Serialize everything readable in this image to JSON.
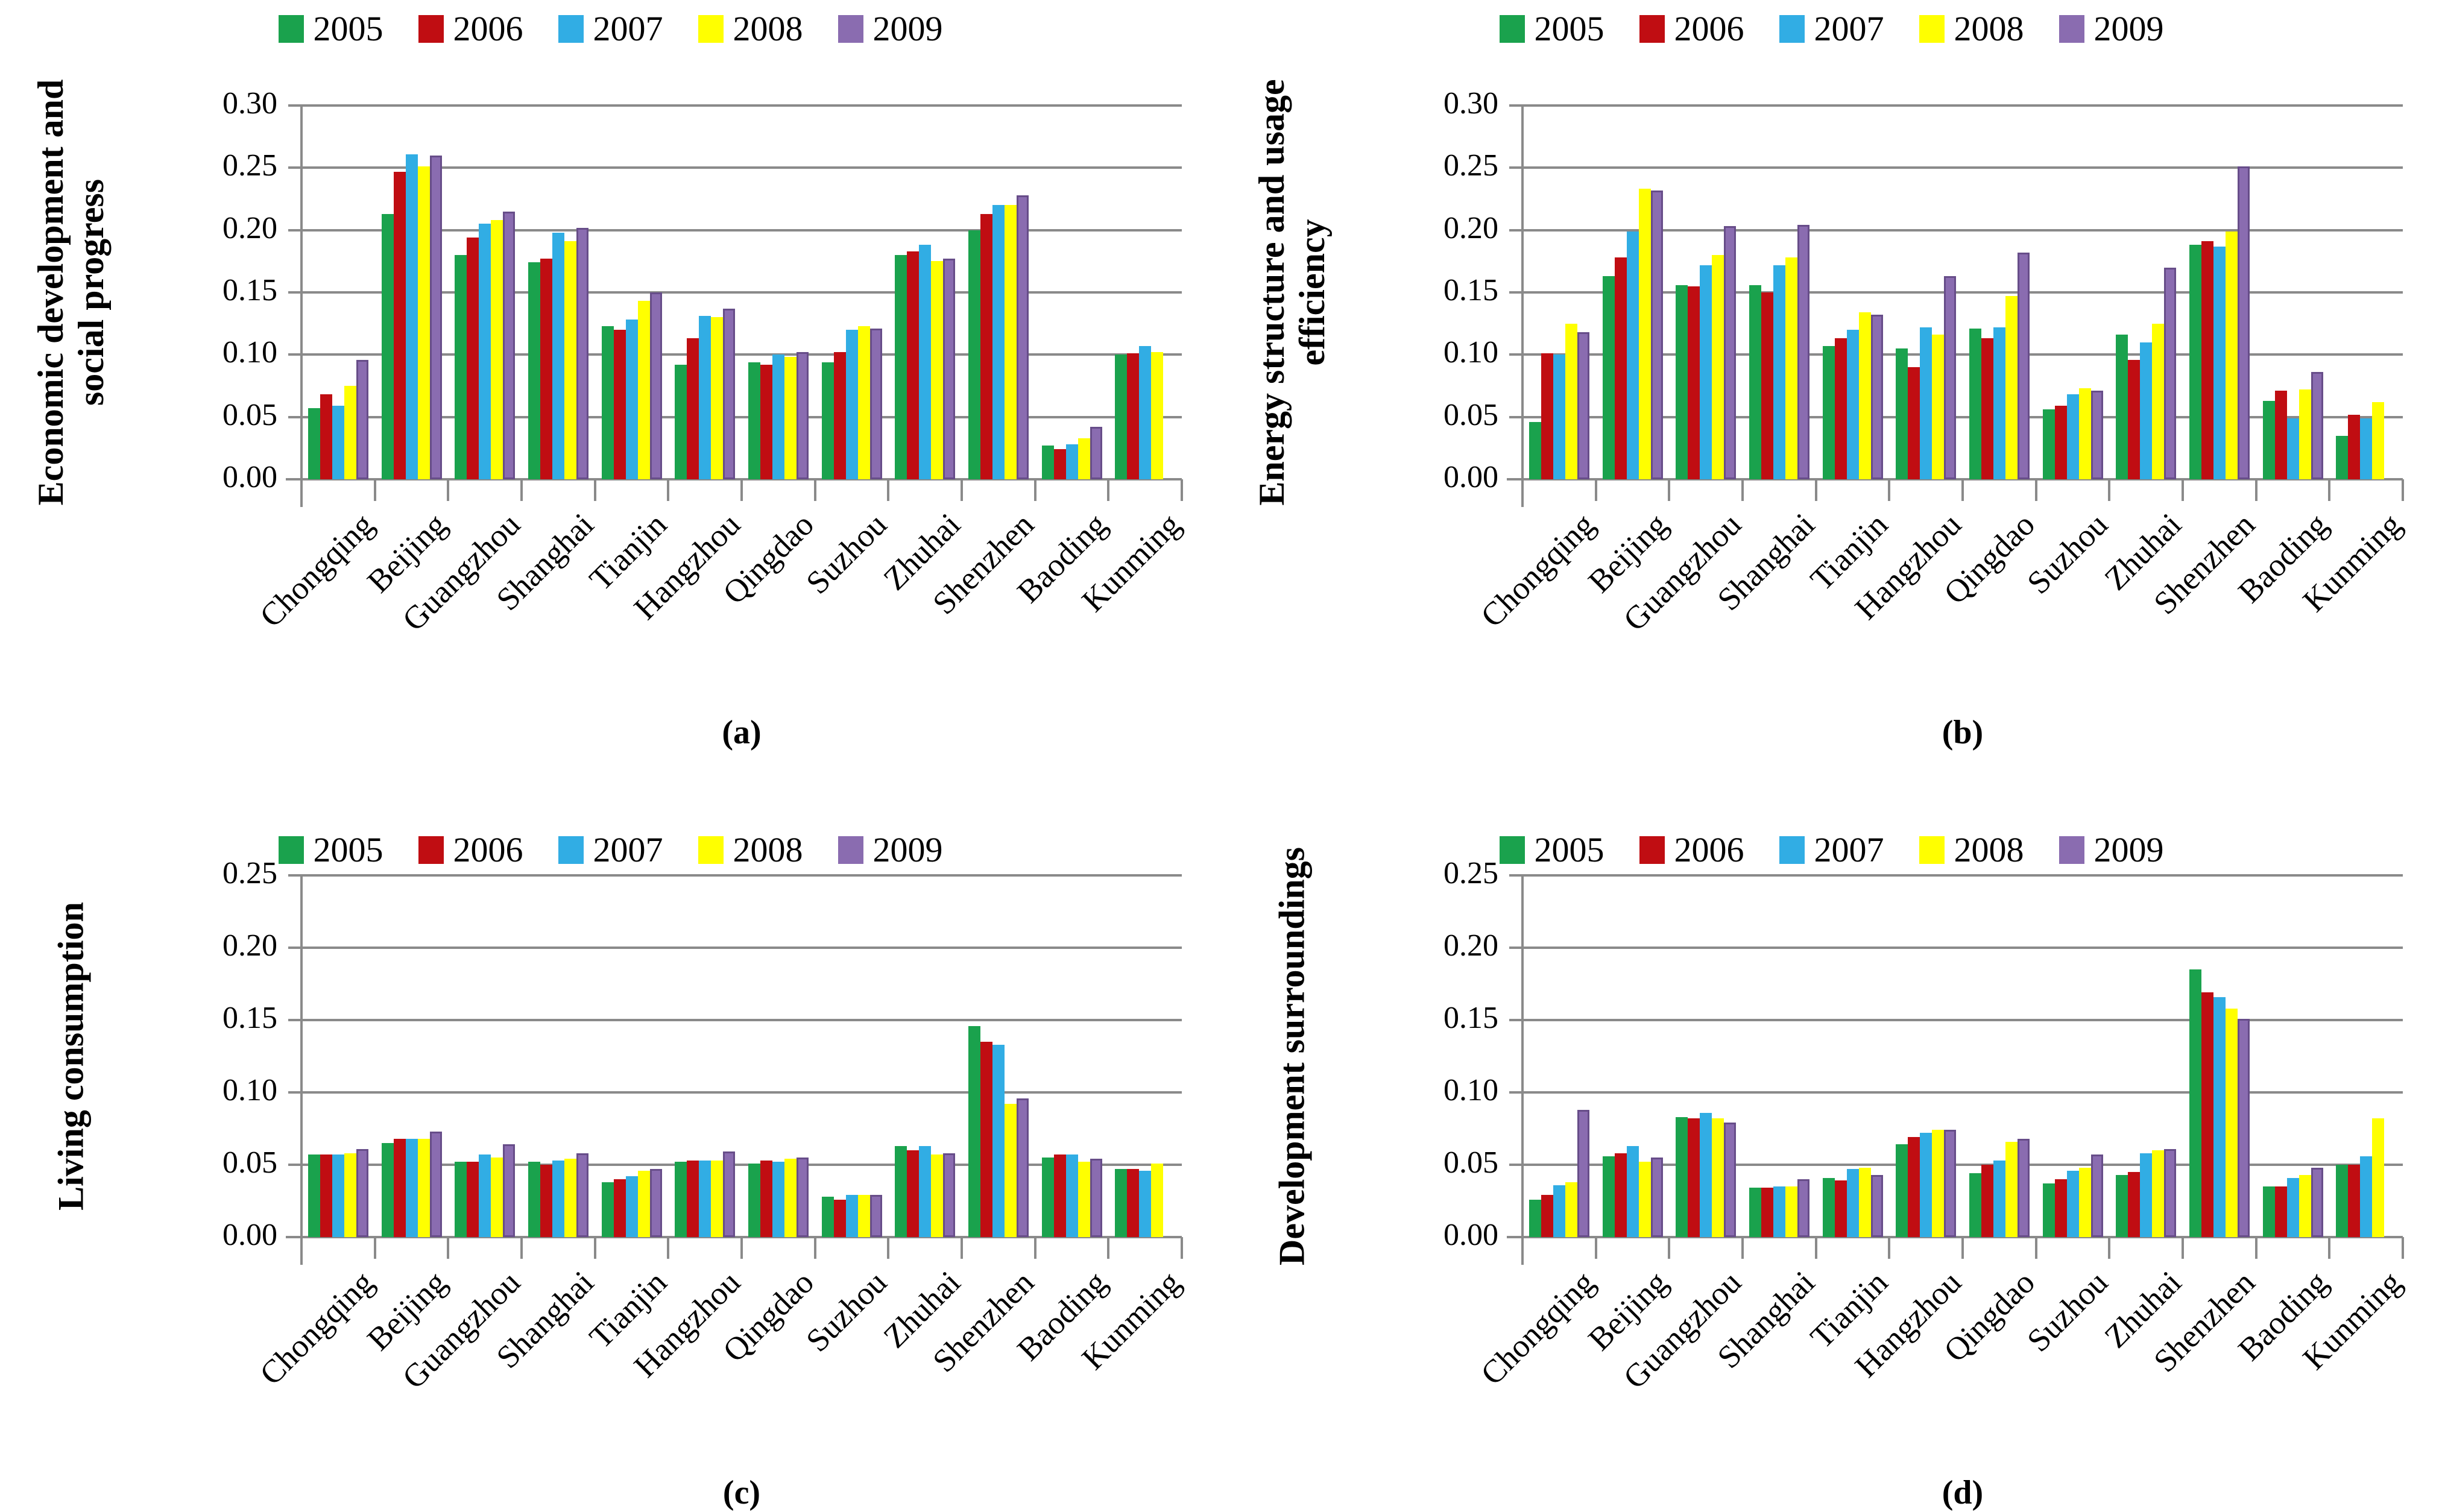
{
  "legend": {
    "years": [
      "2005",
      "2006",
      "2007",
      "2008",
      "2009"
    ]
  },
  "colors": {
    "series": {
      "2005": "#1aa24d",
      "2006": "#c00d12",
      "2007": "#31ade4",
      "2008": "#ffff00",
      "2009": "#8a6cb0"
    },
    "gridline": "#8a8a8a",
    "axis": "#8a8a8a",
    "text": "#000000"
  },
  "chart_data": [
    {
      "type": "bar",
      "panel": "a",
      "caption": "(a)",
      "title": "",
      "ylabel": "Economic development and social progress",
      "ylabel_lines": [
        "Economic development and",
        "social progress"
      ],
      "xlabel": "",
      "ylim": [
        0,
        0.3
      ],
      "yticks": [
        "0.00",
        "0.05",
        "0.10",
        "0.15",
        "0.20",
        "0.25",
        "0.30"
      ],
      "grid": true,
      "legend_position": "top",
      "categories": [
        "Chongqing",
        "Beijing",
        "Guangzhou",
        "Shanghai",
        "Tianjin",
        "Hangzhou",
        "Qingdao",
        "Suzhou",
        "Zhuhai",
        "Shenzhen",
        "Baoding",
        "Kunming"
      ],
      "series": [
        {
          "name": "2005",
          "values": [
            0.057,
            0.213,
            0.18,
            0.174,
            0.123,
            0.092,
            0.094,
            0.094,
            0.18,
            0.2,
            0.027,
            0.1
          ]
        },
        {
          "name": "2006",
          "values": [
            0.068,
            0.247,
            0.194,
            0.177,
            0.12,
            0.113,
            0.092,
            0.102,
            0.183,
            0.213,
            0.024,
            0.101
          ]
        },
        {
          "name": "2007",
          "values": [
            0.059,
            0.261,
            0.205,
            0.198,
            0.128,
            0.131,
            0.1,
            0.12,
            0.188,
            0.22,
            0.028,
            0.107
          ]
        },
        {
          "name": "2008",
          "values": [
            0.075,
            0.251,
            0.208,
            0.191,
            0.143,
            0.13,
            0.098,
            0.123,
            0.175,
            0.22,
            0.033,
            0.102
          ]
        },
        {
          "name": "2009",
          "values": [
            0.096,
            0.26,
            0.215,
            0.202,
            0.15,
            0.137,
            0.102,
            0.121,
            0.177,
            0.228,
            0.042,
            null
          ]
        }
      ]
    },
    {
      "type": "bar",
      "panel": "b",
      "caption": "(b)",
      "title": "",
      "ylabel": "Energy structure and usage efficiency",
      "ylabel_lines": [
        "Energy structure and usage",
        "efficiency"
      ],
      "xlabel": "",
      "ylim": [
        0,
        0.3
      ],
      "yticks": [
        "0.00",
        "0.05",
        "0.10",
        "0.15",
        "0.20",
        "0.25",
        "0.30"
      ],
      "grid": true,
      "legend_position": "top",
      "categories": [
        "Chongqing",
        "Beijing",
        "Guangzhou",
        "Shanghai",
        "Tianjin",
        "Hangzhou",
        "Qingdao",
        "Suzhou",
        "Zhuhai",
        "Shenzhen",
        "Baoding",
        "Kunming"
      ],
      "series": [
        {
          "name": "2005",
          "values": [
            0.046,
            0.163,
            0.156,
            0.156,
            0.107,
            0.105,
            0.121,
            0.056,
            0.116,
            0.188,
            0.063,
            0.035
          ]
        },
        {
          "name": "2006",
          "values": [
            0.101,
            0.178,
            0.155,
            0.15,
            0.113,
            0.09,
            0.113,
            0.059,
            0.096,
            0.191,
            0.071,
            0.052
          ]
        },
        {
          "name": "2007",
          "values": [
            0.1,
            0.199,
            0.172,
            0.172,
            0.12,
            0.122,
            0.122,
            0.068,
            0.11,
            0.187,
            0.049,
            0.049
          ]
        },
        {
          "name": "2008",
          "values": [
            0.125,
            0.233,
            0.18,
            0.178,
            0.134,
            0.116,
            0.147,
            0.073,
            0.125,
            0.199,
            0.072,
            0.062
          ]
        },
        {
          "name": "2009",
          "values": [
            0.118,
            0.232,
            0.203,
            0.204,
            0.132,
            0.163,
            0.182,
            0.071,
            0.17,
            0.251,
            0.086,
            null
          ]
        }
      ]
    },
    {
      "type": "bar",
      "panel": "c",
      "caption": "(c)",
      "title": "",
      "ylabel": "Living consumption",
      "ylabel_lines": [
        "Living consumption"
      ],
      "xlabel": "",
      "ylim": [
        0,
        0.25
      ],
      "yticks": [
        "0.00",
        "0.05",
        "0.10",
        "0.15",
        "0.20",
        "0.25"
      ],
      "grid": true,
      "legend_position": "top",
      "categories": [
        "Chongqing",
        "Beijing",
        "Guangzhou",
        "Shanghai",
        "Tianjin",
        "Hangzhou",
        "Qingdao",
        "Suzhou",
        "Zhuhai",
        "Shenzhen",
        "Baoding",
        "Kunming"
      ],
      "series": [
        {
          "name": "2005",
          "values": [
            0.057,
            0.065,
            0.052,
            0.052,
            0.038,
            0.052,
            0.051,
            0.028,
            0.063,
            0.146,
            0.055,
            0.047
          ]
        },
        {
          "name": "2006",
          "values": [
            0.057,
            0.068,
            0.052,
            0.05,
            0.04,
            0.053,
            0.053,
            0.026,
            0.06,
            0.135,
            0.057,
            0.047
          ]
        },
        {
          "name": "2007",
          "values": [
            0.057,
            0.068,
            0.057,
            0.053,
            0.042,
            0.053,
            0.052,
            0.029,
            0.063,
            0.133,
            0.057,
            0.046
          ]
        },
        {
          "name": "2008",
          "values": [
            0.058,
            0.068,
            0.055,
            0.054,
            0.046,
            0.053,
            0.054,
            0.029,
            0.057,
            0.092,
            0.052,
            0.051
          ]
        },
        {
          "name": "2009",
          "values": [
            0.061,
            0.073,
            0.064,
            0.058,
            0.047,
            0.059,
            0.055,
            0.029,
            0.058,
            0.096,
            0.054,
            null
          ]
        }
      ]
    },
    {
      "type": "bar",
      "panel": "d",
      "caption": "(d)",
      "title": "",
      "ylabel": "Development surroundings",
      "ylabel_lines": [
        "Development surroundings"
      ],
      "xlabel": "",
      "ylim": [
        0,
        0.25
      ],
      "yticks": [
        "0.00",
        "0.05",
        "0.10",
        "0.15",
        "0.20",
        "0.25"
      ],
      "grid": true,
      "legend_position": "top",
      "categories": [
        "Chongqing",
        "Beijing",
        "Guangzhou",
        "Shanghai",
        "Tianjin",
        "Hangzhou",
        "Qingdao",
        "Suzhou",
        "Zhuhai",
        "Shenzhen",
        "Baoding",
        "Kunming"
      ],
      "series": [
        {
          "name": "2005",
          "values": [
            0.026,
            0.056,
            0.083,
            0.034,
            0.041,
            0.064,
            0.044,
            0.037,
            0.043,
            0.185,
            0.035,
            0.05
          ]
        },
        {
          "name": "2006",
          "values": [
            0.029,
            0.058,
            0.082,
            0.034,
            0.039,
            0.069,
            0.05,
            0.04,
            0.045,
            0.169,
            0.035,
            0.05
          ]
        },
        {
          "name": "2007",
          "values": [
            0.036,
            0.063,
            0.086,
            0.035,
            0.047,
            0.072,
            0.053,
            0.046,
            0.058,
            0.166,
            0.041,
            0.056
          ]
        },
        {
          "name": "2008",
          "values": [
            0.038,
            0.052,
            0.082,
            0.035,
            0.048,
            0.074,
            0.066,
            0.048,
            0.06,
            0.158,
            0.043,
            0.082
          ]
        },
        {
          "name": "2009",
          "values": [
            0.088,
            0.055,
            0.079,
            0.04,
            0.043,
            0.074,
            0.068,
            0.057,
            0.061,
            0.151,
            0.048,
            null
          ]
        }
      ]
    }
  ]
}
